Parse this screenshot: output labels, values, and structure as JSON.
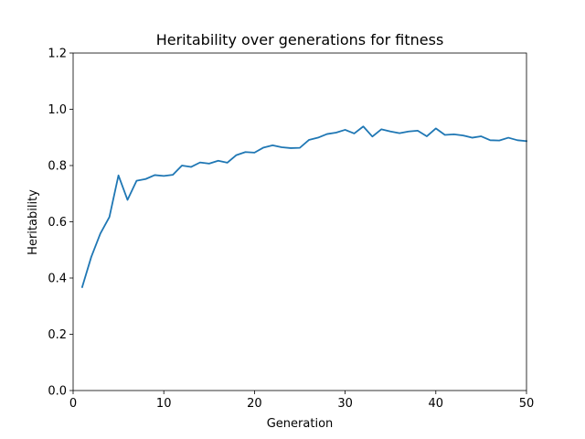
{
  "chart_data": {
    "type": "line",
    "title": "Heritability over generations for fitness",
    "xlabel": "Generation",
    "ylabel": "Heritability",
    "xlim": [
      0,
      50
    ],
    "ylim": [
      0.0,
      1.2
    ],
    "xticks": [
      "0",
      "10",
      "20",
      "30",
      "40",
      "50"
    ],
    "yticks": [
      "0.0",
      "0.2",
      "0.4",
      "0.6",
      "0.8",
      "1.0",
      "1.2"
    ],
    "grid": false,
    "series": [
      {
        "color": "#1f77b4",
        "x": [
          1,
          2,
          3,
          4,
          5,
          6,
          7,
          8,
          9,
          10,
          11,
          12,
          13,
          14,
          15,
          16,
          17,
          18,
          19,
          20,
          21,
          22,
          23,
          24,
          25,
          26,
          27,
          28,
          29,
          30,
          31,
          32,
          33,
          34,
          35,
          36,
          37,
          38,
          39,
          40,
          41,
          42,
          43,
          44,
          45,
          46,
          47,
          48,
          49,
          50
        ],
        "values": [
          0.368,
          0.475,
          0.558,
          0.617,
          0.765,
          0.678,
          0.746,
          0.752,
          0.766,
          0.763,
          0.767,
          0.8,
          0.795,
          0.811,
          0.807,
          0.817,
          0.81,
          0.837,
          0.848,
          0.846,
          0.864,
          0.872,
          0.865,
          0.862,
          0.863,
          0.891,
          0.899,
          0.912,
          0.917,
          0.927,
          0.914,
          0.939,
          0.903,
          0.929,
          0.921,
          0.915,
          0.921,
          0.924,
          0.904,
          0.932,
          0.909,
          0.911,
          0.907,
          0.899,
          0.904,
          0.89,
          0.889,
          0.899,
          0.89,
          0.887
        ]
      }
    ]
  }
}
